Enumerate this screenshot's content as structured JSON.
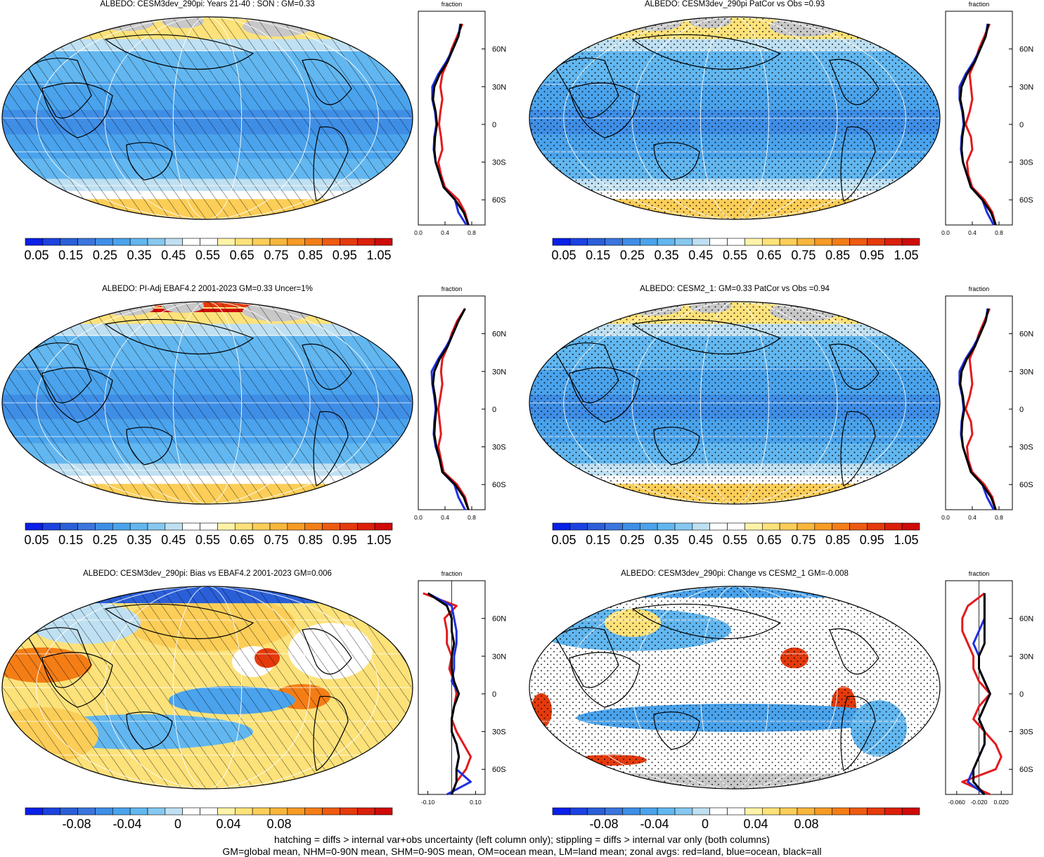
{
  "panels": [
    {
      "id": "p1",
      "title": "ALBEDO: CESM3dev_290pi: Years 21-40 : SON : GM=0.33",
      "kind": "abs",
      "pattern": "hatch",
      "zonal_ticks": [
        "0.0",
        "0.4",
        "0.8"
      ]
    },
    {
      "id": "p2",
      "title": "ALBEDO: CESM3dev_290pi PatCor vs Obs =0.93",
      "kind": "abs",
      "pattern": "stipple",
      "zonal_ticks": [
        "0.0",
        "0.4",
        "0.8"
      ]
    },
    {
      "id": "p3",
      "title": "ALBEDO: PI-Adj EBAF4.2 2001-2023 GM=0.33 Uncer=1%",
      "kind": "abs",
      "pattern": "hatch",
      "zonal_ticks": [
        "0.0",
        "0.4",
        "0.8"
      ]
    },
    {
      "id": "p4",
      "title": "ALBEDO: CESM2_1: GM=0.33 PatCor vs Obs =0.94",
      "kind": "abs",
      "pattern": "stipple",
      "zonal_ticks": [
        "0.0",
        "0.4",
        "0.8"
      ]
    },
    {
      "id": "p5",
      "title": "ALBEDO: CESM3dev_290pi: Bias vs EBAF4.2 2001-2023  GM=0.006",
      "kind": "diff",
      "pattern": "hatch",
      "zonal_ticks": [
        "-0.10",
        "0.10"
      ]
    },
    {
      "id": "p6",
      "title": "ALBEDO: CESM3dev_290pi: Change vs CESM2_1 GM=-0.008",
      "kind": "diff",
      "pattern": "stipple",
      "zonal_ticks": [
        "-0.060",
        "-0.020",
        "0.020"
      ]
    }
  ],
  "zonal_axis": {
    "title": "fraction",
    "lat_labels": [
      "60N",
      "30N",
      "0",
      "30S",
      "60S"
    ]
  },
  "colorbars": {
    "abs_labels": [
      "0.05",
      "0.15",
      "0.25",
      "0.35",
      "0.45",
      "0.55",
      "0.65",
      "0.75",
      "0.85",
      "0.95",
      "1.05"
    ],
    "diff_labels": [
      "-0.08",
      "-0.04",
      "0",
      "0.04",
      "0.08"
    ],
    "abs_colors": [
      "#0a1fe8",
      "#1b42e0",
      "#2a5fd8",
      "#3a75de",
      "#3f8ee6",
      "#4aa3ec",
      "#62b7f0",
      "#86c8ef",
      "#bfe0f2",
      "#ffffff",
      "#ffffff",
      "#fff3a8",
      "#fde27a",
      "#fcce58",
      "#f9b63b",
      "#f79b25",
      "#f47d16",
      "#ee5a10",
      "#e53a0c",
      "#db1f0a",
      "#cf0a08"
    ],
    "diff_colors": [
      "#0a1fe8",
      "#1b42e0",
      "#2a5fd8",
      "#3a75de",
      "#3f8ee6",
      "#4aa3ec",
      "#62b7f0",
      "#86c8ef",
      "#bfe0f2",
      "#ffffff",
      "#ffffff",
      "#fff3a8",
      "#fde27a",
      "#fcce58",
      "#f9b63b",
      "#f79b25",
      "#f47d16",
      "#ee5a10",
      "#e53a0c",
      "#db1f0a",
      "#cf0a08"
    ]
  },
  "footnote": {
    "line1": "hatching = diffs > internal var+obs uncertainty (left column only); stippling = diffs > internal var only (both columns)",
    "line2": "GM=global mean, NHM=0-90N mean, SHM=0-90S mean, OM=ocean mean, LM=land mean; zonal avgs: red=land, blue=ocean, black=all"
  },
  "colors": {
    "land_line": "#e31a1c",
    "ocean_line": "#1f2fe0",
    "all_line": "#000000",
    "missing": "#c8c8c8"
  },
  "chart_data": [
    {
      "type": "heatmap",
      "title": "ALBEDO: CESM3dev_290pi: Years 21-40 : SON : GM=0.33",
      "zonal": {
        "lat": [
          -80,
          -70,
          -60,
          -50,
          -40,
          -30,
          -20,
          -10,
          0,
          10,
          20,
          30,
          40,
          50,
          60,
          70,
          80
        ],
        "all": [
          0.75,
          0.68,
          0.55,
          0.38,
          0.32,
          0.26,
          0.24,
          0.25,
          0.28,
          0.26,
          0.22,
          0.24,
          0.32,
          0.44,
          0.52,
          0.6,
          0.64
        ],
        "land": [
          0.75,
          0.7,
          0.6,
          0.4,
          0.34,
          0.3,
          0.36,
          0.34,
          0.31,
          0.33,
          0.36,
          0.33,
          0.36,
          0.44,
          0.5,
          0.58,
          0.66
        ],
        "ocean": [
          0.72,
          0.6,
          0.55,
          0.38,
          0.32,
          0.26,
          0.23,
          0.24,
          0.27,
          0.25,
          0.21,
          0.21,
          0.3,
          0.42,
          0.52,
          0.6,
          0.63
        ]
      }
    },
    {
      "type": "heatmap",
      "title": "ALBEDO: CESM3dev_290pi PatCor vs Obs =0.93",
      "zonal": {
        "lat": [
          -80,
          -70,
          -60,
          -50,
          -40,
          -30,
          -20,
          -10,
          0,
          10,
          20,
          30,
          40,
          50,
          60,
          70,
          80
        ],
        "all": [
          0.75,
          0.68,
          0.55,
          0.38,
          0.32,
          0.26,
          0.24,
          0.25,
          0.28,
          0.26,
          0.22,
          0.24,
          0.32,
          0.44,
          0.52,
          0.6,
          0.64
        ],
        "land": [
          0.75,
          0.7,
          0.58,
          0.4,
          0.34,
          0.32,
          0.4,
          0.38,
          0.3,
          0.36,
          0.4,
          0.38,
          0.36,
          0.44,
          0.5,
          0.58,
          0.66
        ],
        "ocean": [
          0.72,
          0.62,
          0.55,
          0.38,
          0.32,
          0.26,
          0.23,
          0.24,
          0.27,
          0.25,
          0.21,
          0.21,
          0.3,
          0.42,
          0.52,
          0.6,
          0.63
        ]
      }
    },
    {
      "type": "heatmap",
      "title": "ALBEDO: PI-Adj EBAF4.2 2001-2023 GM=0.33 Uncer=1%",
      "zonal": {
        "lat": [
          -80,
          -70,
          -60,
          -50,
          -40,
          -30,
          -20,
          -10,
          0,
          10,
          20,
          30,
          40,
          50,
          60,
          70,
          80
        ],
        "all": [
          0.75,
          0.68,
          0.55,
          0.36,
          0.32,
          0.27,
          0.24,
          0.25,
          0.27,
          0.25,
          0.22,
          0.24,
          0.32,
          0.44,
          0.52,
          0.6,
          0.7
        ],
        "land": [
          0.75,
          0.7,
          0.58,
          0.38,
          0.34,
          0.3,
          0.34,
          0.32,
          0.3,
          0.33,
          0.36,
          0.34,
          0.36,
          0.44,
          0.5,
          0.58,
          0.7
        ],
        "ocean": [
          0.7,
          0.6,
          0.54,
          0.36,
          0.32,
          0.26,
          0.23,
          0.24,
          0.26,
          0.24,
          0.21,
          0.2,
          0.3,
          0.42,
          0.52,
          0.6,
          0.7
        ]
      }
    },
    {
      "type": "heatmap",
      "title": "ALBEDO: CESM2_1: GM=0.33 PatCor vs Obs =0.94",
      "zonal": {
        "lat": [
          -80,
          -70,
          -60,
          -50,
          -40,
          -30,
          -20,
          -10,
          0,
          10,
          20,
          30,
          40,
          50,
          60,
          70,
          80
        ],
        "all": [
          0.75,
          0.68,
          0.55,
          0.38,
          0.32,
          0.26,
          0.24,
          0.25,
          0.28,
          0.26,
          0.22,
          0.24,
          0.32,
          0.44,
          0.52,
          0.6,
          0.64
        ],
        "land": [
          0.75,
          0.7,
          0.58,
          0.4,
          0.34,
          0.32,
          0.4,
          0.38,
          0.3,
          0.36,
          0.4,
          0.38,
          0.36,
          0.44,
          0.5,
          0.58,
          0.66
        ],
        "ocean": [
          0.72,
          0.62,
          0.55,
          0.38,
          0.32,
          0.26,
          0.23,
          0.24,
          0.27,
          0.25,
          0.21,
          0.21,
          0.3,
          0.42,
          0.52,
          0.6,
          0.63
        ]
      }
    },
    {
      "type": "heatmap",
      "title": "ALBEDO: CESM3dev_290pi: Bias vs EBAF4.2 2001-2023  GM=0.006",
      "zonal": {
        "lat": [
          -80,
          -70,
          -60,
          -50,
          -40,
          -30,
          -20,
          -10,
          0,
          10,
          20,
          30,
          40,
          50,
          60,
          70,
          80
        ],
        "all": [
          0.0,
          0.02,
          0.02,
          0.03,
          0.02,
          0.0,
          0.0,
          0.01,
          0.03,
          0.01,
          0.0,
          0.0,
          0.01,
          0.0,
          0.0,
          -0.02,
          -0.1
        ],
        "land": [
          0.0,
          0.02,
          0.06,
          0.08,
          0.05,
          0.02,
          0.0,
          0.01,
          0.02,
          0.01,
          -0.01,
          0.0,
          -0.02,
          -0.02,
          -0.03,
          0.02,
          -0.12
        ],
        "ocean": [
          -0.02,
          0.08,
          0.02,
          0.03,
          0.02,
          0.0,
          0.0,
          0.01,
          0.03,
          0.0,
          0.01,
          0.01,
          0.02,
          0.02,
          0.01,
          0.0,
          -0.1
        ]
      }
    },
    {
      "type": "heatmap",
      "title": "ALBEDO: CESM3dev_290pi: Change vs CESM2_1 GM=-0.008",
      "zonal": {
        "lat": [
          -80,
          -70,
          -60,
          -50,
          -40,
          -30,
          -20,
          -10,
          0,
          10,
          20,
          30,
          40,
          50,
          60,
          70,
          80
        ],
        "all": [
          -0.01,
          -0.03,
          -0.03,
          -0.02,
          -0.01,
          -0.01,
          -0.02,
          -0.01,
          0.0,
          -0.01,
          -0.02,
          -0.02,
          -0.01,
          -0.01,
          -0.01,
          -0.01,
          -0.01
        ],
        "land": [
          0.0,
          -0.05,
          0.01,
          0.02,
          0.01,
          -0.01,
          -0.03,
          -0.02,
          0.0,
          -0.02,
          -0.03,
          -0.03,
          -0.04,
          -0.05,
          -0.05,
          -0.04,
          -0.01
        ],
        "ocean": [
          -0.01,
          -0.04,
          -0.03,
          -0.02,
          -0.01,
          -0.01,
          -0.02,
          -0.01,
          0.0,
          -0.01,
          -0.02,
          -0.02,
          -0.03,
          -0.02,
          -0.01,
          -0.01,
          -0.01
        ]
      }
    }
  ]
}
